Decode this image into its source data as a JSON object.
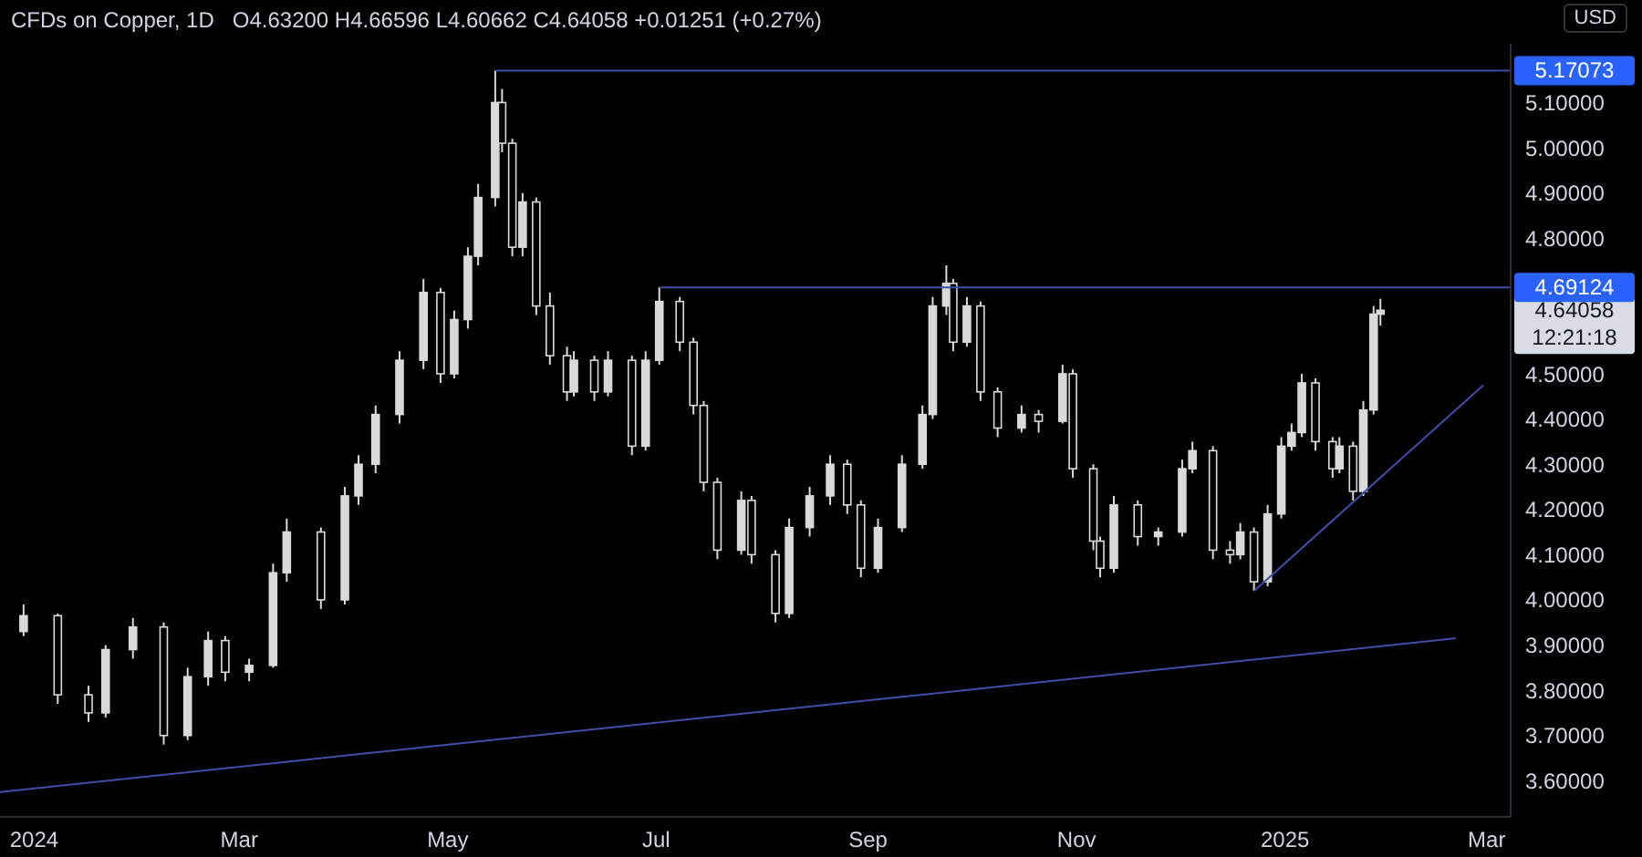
{
  "chart_data": {
    "type": "candlestick",
    "title": "CFDs on Copper, 1D",
    "ylabel": "USD",
    "annotations": [
      "O4.63200  H4.66596  L4.60662  C4.64058  +0.01251 (+0.27%)",
      "4.64058",
      "12:21:18"
    ],
    "xlim": [
      "2023-12-22",
      "2025-03-08"
    ],
    "xticks": [
      {
        "value": "2024-01-01",
        "label": "2024"
      },
      {
        "value": "2024-03-01",
        "label": "Mar"
      },
      {
        "value": "2024-05-01",
        "label": "May"
      },
      {
        "value": "2024-07-01",
        "label": "Jul"
      },
      {
        "value": "2024-09-01",
        "label": "Sep"
      },
      {
        "value": "2024-11-01",
        "label": "Nov"
      },
      {
        "value": "2025-01-01",
        "label": "2025"
      },
      {
        "value": "2025-03-01",
        "label": "Mar"
      }
    ],
    "ylim": [
      3.52,
      5.23
    ],
    "yticks": [
      {
        "value": 3.6,
        "label": "3.60000"
      },
      {
        "value": 3.7,
        "label": "3.70000"
      },
      {
        "value": 3.8,
        "label": "3.80000"
      },
      {
        "value": 3.9,
        "label": "3.90000"
      },
      {
        "value": 4.0,
        "label": "4.00000"
      },
      {
        "value": 4.1,
        "label": "4.10000"
      },
      {
        "value": 4.2,
        "label": "4.20000"
      },
      {
        "value": 4.3,
        "label": "4.30000"
      },
      {
        "value": 4.4,
        "label": "4.40000"
      },
      {
        "value": 4.5,
        "label": "4.50000"
      },
      {
        "value": 4.8,
        "label": "4.80000"
      },
      {
        "value": 4.9,
        "label": "4.90000"
      },
      {
        "value": 5.0,
        "label": "5.00000"
      },
      {
        "value": 5.1,
        "label": "5.10000"
      }
    ],
    "series": [
      {
        "color": "#d9d9d9",
        "x": [
          "2023-12-29",
          "2024-01-08",
          "2024-01-17",
          "2024-01-22",
          "2024-01-30",
          "2024-02-08",
          "2024-02-15",
          "2024-02-21",
          "2024-02-26",
          "2024-03-04",
          "2024-03-11",
          "2024-03-15",
          "2024-03-25",
          "2024-04-01",
          "2024-04-05",
          "2024-04-10",
          "2024-04-17",
          "2024-04-24",
          "2024-04-29",
          "2024-05-03",
          "2024-05-07",
          "2024-05-10",
          "2024-05-15",
          "2024-05-17",
          "2024-05-20",
          "2024-05-23",
          "2024-05-27",
          "2024-05-31",
          "2024-06-05",
          "2024-06-07",
          "2024-06-13",
          "2024-06-17",
          "2024-06-24",
          "2024-06-28",
          "2024-07-02",
          "2024-07-08",
          "2024-07-12",
          "2024-07-15",
          "2024-07-19",
          "2024-07-26",
          "2024-07-29",
          "2024-08-05",
          "2024-08-09",
          "2024-08-15",
          "2024-08-21",
          "2024-08-26",
          "2024-08-30",
          "2024-09-04",
          "2024-09-11",
          "2024-09-17",
          "2024-09-20",
          "2024-09-24",
          "2024-09-26",
          "2024-09-30",
          "2024-10-04",
          "2024-10-09",
          "2024-10-16",
          "2024-10-21",
          "2024-10-28",
          "2024-10-31",
          "2024-11-06",
          "2024-11-08",
          "2024-11-12",
          "2024-11-19",
          "2024-11-25",
          "2024-12-02",
          "2024-12-05",
          "2024-12-11",
          "2024-12-16",
          "2024-12-19",
          "2024-12-23",
          "2024-12-27",
          "2024-12-31",
          "2025-01-03",
          "2025-01-06",
          "2025-01-10",
          "2025-01-15",
          "2025-01-17",
          "2025-01-21",
          "2025-01-24",
          "2025-01-27",
          "2025-01-29"
        ],
        "ohlc": [
          [
            3.93,
            3.99,
            3.92,
            3.965
          ],
          [
            3.965,
            3.97,
            3.77,
            3.79
          ],
          [
            3.79,
            3.81,
            3.73,
            3.75
          ],
          [
            3.75,
            3.9,
            3.74,
            3.89
          ],
          [
            3.89,
            3.96,
            3.87,
            3.94
          ],
          [
            3.94,
            3.95,
            3.68,
            3.7
          ],
          [
            3.7,
            3.85,
            3.69,
            3.83
          ],
          [
            3.83,
            3.93,
            3.81,
            3.91
          ],
          [
            3.91,
            3.92,
            3.82,
            3.84
          ],
          [
            3.84,
            3.87,
            3.82,
            3.855
          ],
          [
            3.855,
            4.08,
            3.85,
            4.06
          ],
          [
            4.06,
            4.18,
            4.04,
            4.15
          ],
          [
            4.15,
            4.16,
            3.98,
            4.0
          ],
          [
            4.0,
            4.25,
            3.99,
            4.23
          ],
          [
            4.23,
            4.32,
            4.21,
            4.3
          ],
          [
            4.3,
            4.43,
            4.28,
            4.41
          ],
          [
            4.41,
            4.55,
            4.39,
            4.53
          ],
          [
            4.53,
            4.71,
            4.51,
            4.68
          ],
          [
            4.68,
            4.69,
            4.48,
            4.5
          ],
          [
            4.5,
            4.64,
            4.49,
            4.62
          ],
          [
            4.62,
            4.78,
            4.6,
            4.76
          ],
          [
            4.76,
            4.92,
            4.74,
            4.89
          ],
          [
            4.89,
            5.17073,
            4.87,
            5.1
          ],
          [
            5.1,
            5.13,
            4.99,
            5.01
          ],
          [
            5.01,
            5.02,
            4.76,
            4.78
          ],
          [
            4.78,
            4.9,
            4.76,
            4.88
          ],
          [
            4.88,
            4.89,
            4.63,
            4.65
          ],
          [
            4.65,
            4.68,
            4.52,
            4.54
          ],
          [
            4.54,
            4.56,
            4.44,
            4.46
          ],
          [
            4.46,
            4.55,
            4.45,
            4.53
          ],
          [
            4.53,
            4.54,
            4.44,
            4.46
          ],
          [
            4.46,
            4.55,
            4.45,
            4.53
          ],
          [
            4.53,
            4.54,
            4.32,
            4.34
          ],
          [
            4.34,
            4.55,
            4.33,
            4.53
          ],
          [
            4.53,
            4.69124,
            4.52,
            4.66
          ],
          [
            4.66,
            4.67,
            4.55,
            4.57
          ],
          [
            4.57,
            4.58,
            4.41,
            4.43
          ],
          [
            4.43,
            4.44,
            4.24,
            4.26
          ],
          [
            4.26,
            4.27,
            4.09,
            4.11
          ],
          [
            4.11,
            4.24,
            4.1,
            4.22
          ],
          [
            4.22,
            4.23,
            4.08,
            4.1
          ],
          [
            4.1,
            4.11,
            3.95,
            3.97
          ],
          [
            3.97,
            4.18,
            3.96,
            4.16
          ],
          [
            4.16,
            4.25,
            4.14,
            4.23
          ],
          [
            4.23,
            4.32,
            4.21,
            4.3
          ],
          [
            4.3,
            4.31,
            4.19,
            4.21
          ],
          [
            4.21,
            4.22,
            4.05,
            4.07
          ],
          [
            4.07,
            4.18,
            4.06,
            4.16
          ],
          [
            4.16,
            4.32,
            4.15,
            4.3
          ],
          [
            4.3,
            4.43,
            4.29,
            4.41
          ],
          [
            4.41,
            4.67,
            4.4,
            4.65
          ],
          [
            4.65,
            4.74,
            4.63,
            4.7
          ],
          [
            4.7,
            4.71,
            4.55,
            4.57
          ],
          [
            4.57,
            4.67,
            4.56,
            4.65
          ],
          [
            4.65,
            4.66,
            4.44,
            4.46
          ],
          [
            4.46,
            4.47,
            4.36,
            4.38
          ],
          [
            4.38,
            4.43,
            4.37,
            4.41
          ],
          [
            4.41,
            4.42,
            4.37,
            4.395
          ],
          [
            4.395,
            4.52,
            4.39,
            4.5
          ],
          [
            4.5,
            4.51,
            4.27,
            4.29
          ],
          [
            4.29,
            4.3,
            4.11,
            4.13
          ],
          [
            4.13,
            4.14,
            4.05,
            4.07
          ],
          [
            4.07,
            4.23,
            4.06,
            4.21
          ],
          [
            4.21,
            4.22,
            4.12,
            4.14
          ],
          [
            4.14,
            4.16,
            4.12,
            4.15
          ],
          [
            4.15,
            4.31,
            4.14,
            4.29
          ],
          [
            4.29,
            4.35,
            4.28,
            4.33
          ],
          [
            4.33,
            4.34,
            4.09,
            4.11
          ],
          [
            4.11,
            4.13,
            4.08,
            4.1
          ],
          [
            4.1,
            4.17,
            4.09,
            4.15
          ],
          [
            4.15,
            4.16,
            4.02,
            4.04
          ],
          [
            4.04,
            4.21,
            4.03,
            4.19
          ],
          [
            4.19,
            4.36,
            4.18,
            4.34
          ],
          [
            4.34,
            4.39,
            4.33,
            4.37
          ],
          [
            4.37,
            4.5,
            4.36,
            4.48
          ],
          [
            4.48,
            4.49,
            4.33,
            4.35
          ],
          [
            4.35,
            4.36,
            4.27,
            4.29
          ],
          [
            4.29,
            4.36,
            4.28,
            4.34
          ],
          [
            4.34,
            4.35,
            4.22,
            4.24
          ],
          [
            4.24,
            4.44,
            4.23,
            4.42
          ],
          [
            4.42,
            4.65,
            4.41,
            4.632
          ],
          [
            4.632,
            4.66596,
            4.60662,
            4.64058
          ]
        ]
      },
      {
        "type": "line",
        "color": "#3f4ea8",
        "x": [
          "2024-05-15",
          "2025-03-08"
        ],
        "values": [
          5.17073,
          5.17073
        ],
        "value_labels": [
          null,
          "5.17073"
        ]
      },
      {
        "type": "line",
        "color": "#3f4ea8",
        "x": [
          "2024-07-02",
          "2025-03-08"
        ],
        "values": [
          4.69124,
          4.69124
        ],
        "value_labels": [
          null,
          "4.69124"
        ]
      },
      {
        "type": "line",
        "color": "#3f4ea8",
        "x": [
          "2023-12-22",
          "2025-02-20"
        ],
        "values": [
          3.575,
          3.915
        ]
      },
      {
        "type": "line",
        "color": "#3f4ea8",
        "x": [
          "2024-12-23",
          "2025-02-28"
        ],
        "values": [
          4.02,
          4.475
        ]
      }
    ]
  }
}
